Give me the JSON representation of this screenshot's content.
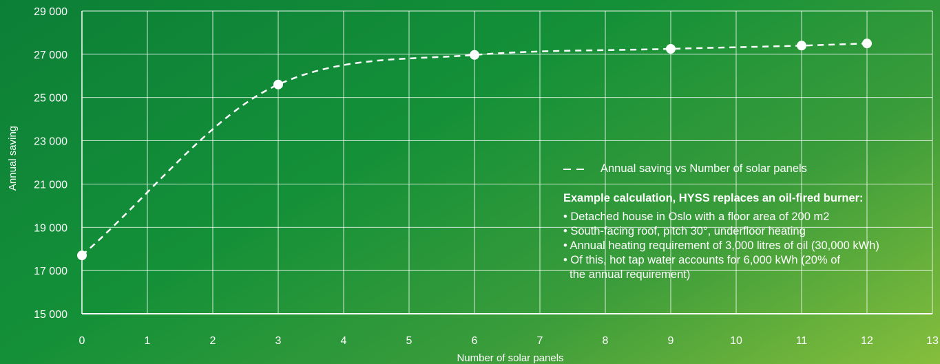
{
  "chart_data": {
    "type": "line",
    "title": "",
    "xlabel": "Number of solar panels",
    "ylabel": "Annual saving",
    "xlim": [
      0,
      13
    ],
    "ylim": [
      15000,
      29000
    ],
    "x_ticks": [
      0,
      1,
      2,
      3,
      4,
      5,
      6,
      7,
      8,
      9,
      10,
      11,
      12,
      13
    ],
    "y_ticks": [
      15000,
      17000,
      19000,
      21000,
      23000,
      25000,
      27000,
      29000
    ],
    "y_tick_labels": [
      "15 000",
      "17 000",
      "19 000",
      "21 000",
      "23 000",
      "25 000",
      "27 000",
      "29 000"
    ],
    "grid": true,
    "legend_position": "bottom-right",
    "series": [
      {
        "name": "Annual saving vs Number of solar panels",
        "line_style": "dashed",
        "color": "#ffffff",
        "x": [
          0,
          3,
          6,
          9,
          11,
          12
        ],
        "values": [
          17700,
          25600,
          26970,
          27250,
          27400,
          27500
        ]
      }
    ]
  },
  "info": {
    "example_title": "Example calculation, HYSS replaces an oil-fired burner:",
    "bullets": [
      "• Detached house in Oslo with a floor area of 200 m2",
      "• South-facing roof, pitch 30°, underfloor heating",
      "• Annual heating requirement of 3,000 litres of oil (30,000 kWh)",
      "• Of this, hot tap water accounts for 6,000 kWh (20% of\n  the annual requirement)"
    ]
  },
  "colors": {
    "background_start": "#0c7f37",
    "background_end": "#86be3c",
    "foreground": "#ffffff"
  }
}
